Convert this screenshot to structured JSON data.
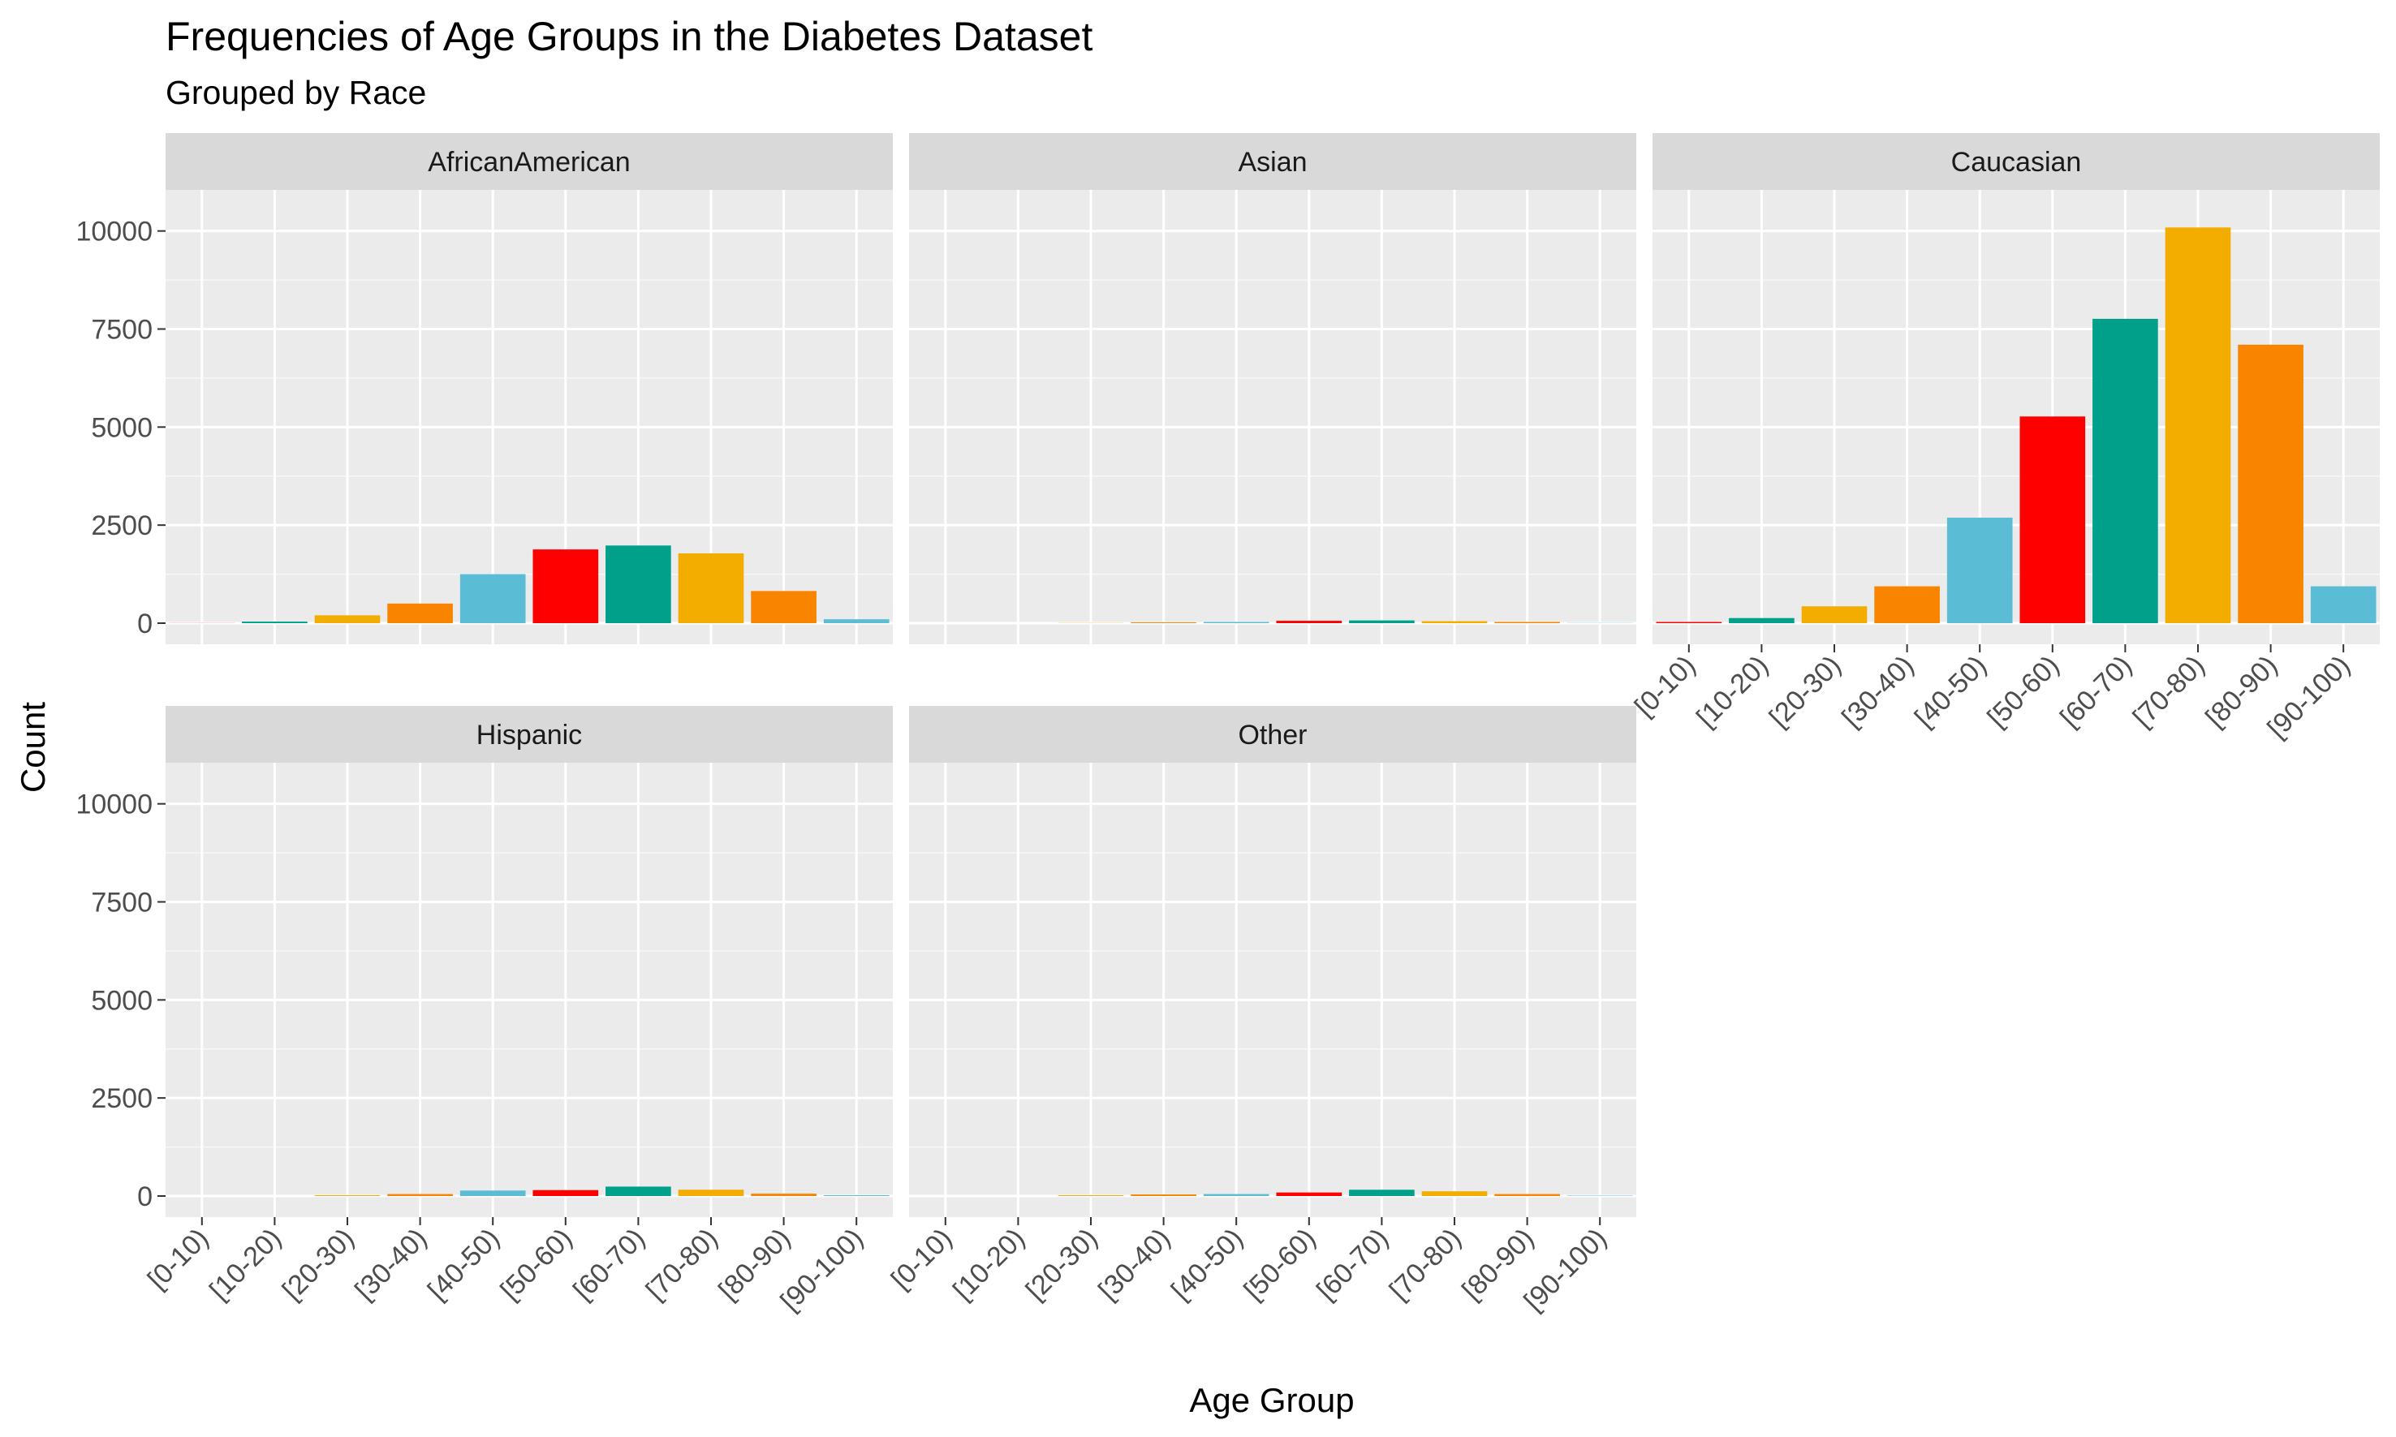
{
  "chart_data": {
    "type": "bar",
    "title": "Frequencies of Age Groups in the Diabetes Dataset",
    "subtitle": "Grouped by Race",
    "xlabel": "Age Group",
    "ylabel": "Count",
    "ylim": [
      0,
      10800
    ],
    "yticks": [
      "0",
      "2500",
      "5000",
      "7500",
      "10000"
    ],
    "ytick_values": [
      0,
      2500,
      5000,
      7500,
      10000
    ],
    "categories": [
      "[0-10)",
      "[10-20)",
      "[20-30)",
      "[30-40)",
      "[40-50)",
      "[50-60)",
      "[60-70)",
      "[70-80)",
      "[80-90)",
      "[90-100)"
    ],
    "bar_colors": [
      "#FF0000",
      "#00A08A",
      "#F2AD00",
      "#F98400",
      "#5BBCD6",
      "#FF0000",
      "#00A08A",
      "#F2AD00",
      "#F98400",
      "#5BBCD6"
    ],
    "grid": true,
    "legend": "none",
    "panels": [
      {
        "name": "AfricanAmerican",
        "values": [
          3,
          40,
          200,
          500,
          1250,
          1880,
          1980,
          1780,
          820,
          100
        ]
      },
      {
        "name": "Asian",
        "values": [
          0,
          0,
          5,
          20,
          30,
          60,
          70,
          50,
          30,
          5
        ]
      },
      {
        "name": "Caucasian",
        "values": [
          30,
          130,
          430,
          940,
          2690,
          5270,
          7760,
          10090,
          7100,
          940
        ]
      },
      {
        "name": "Hispanic",
        "values": [
          0,
          0,
          20,
          50,
          140,
          150,
          240,
          160,
          60,
          20
        ]
      },
      {
        "name": "Other",
        "values": [
          0,
          0,
          20,
          40,
          50,
          90,
          160,
          120,
          50,
          10
        ]
      }
    ]
  }
}
